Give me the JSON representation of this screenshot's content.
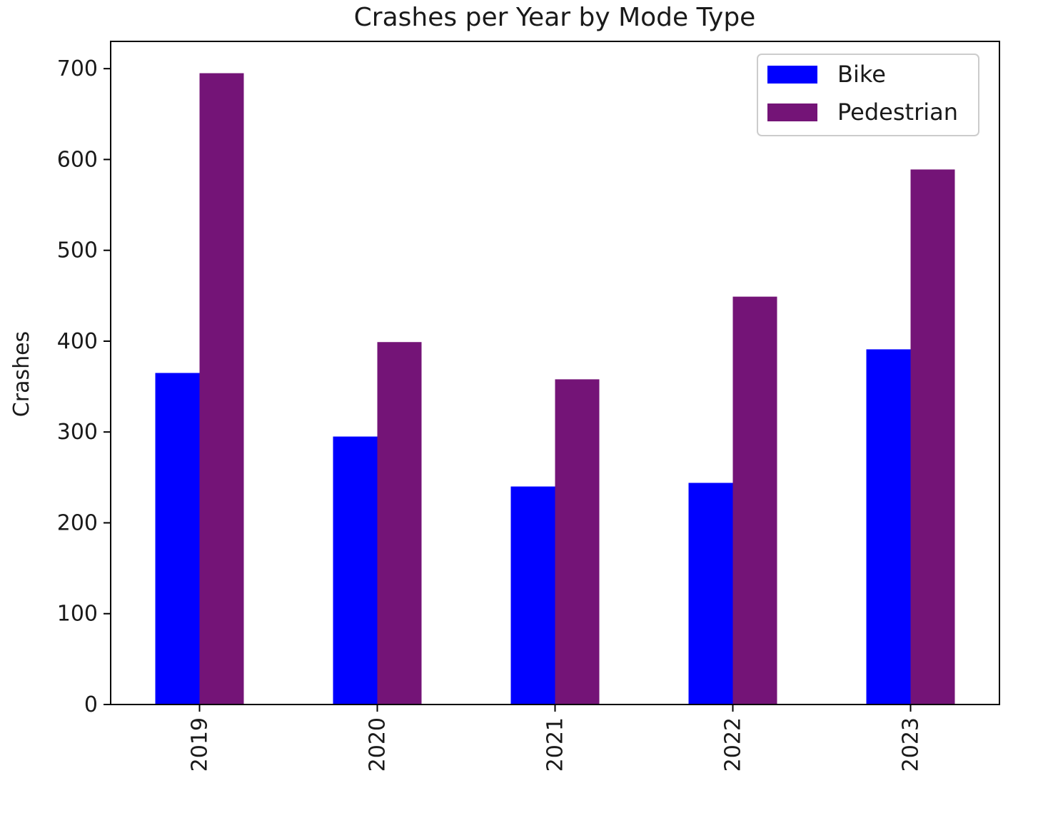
{
  "chart_data": {
    "type": "bar",
    "title": "Crashes per Year by Mode Type",
    "xlabel": "",
    "ylabel": "Crashes",
    "categories": [
      "2019",
      "2020",
      "2021",
      "2022",
      "2023"
    ],
    "series": [
      {
        "name": "Bike",
        "color": "#0000ff",
        "values": [
          365,
          295,
          240,
          244,
          391
        ]
      },
      {
        "name": "Pedestrian",
        "color": "#741477",
        "values": [
          695,
          399,
          358,
          449,
          589
        ]
      }
    ],
    "ylim": [
      0,
      730
    ],
    "yticks": [
      0,
      100,
      200,
      300,
      400,
      500,
      600,
      700
    ],
    "grid": false,
    "legend_position": "top-right"
  }
}
